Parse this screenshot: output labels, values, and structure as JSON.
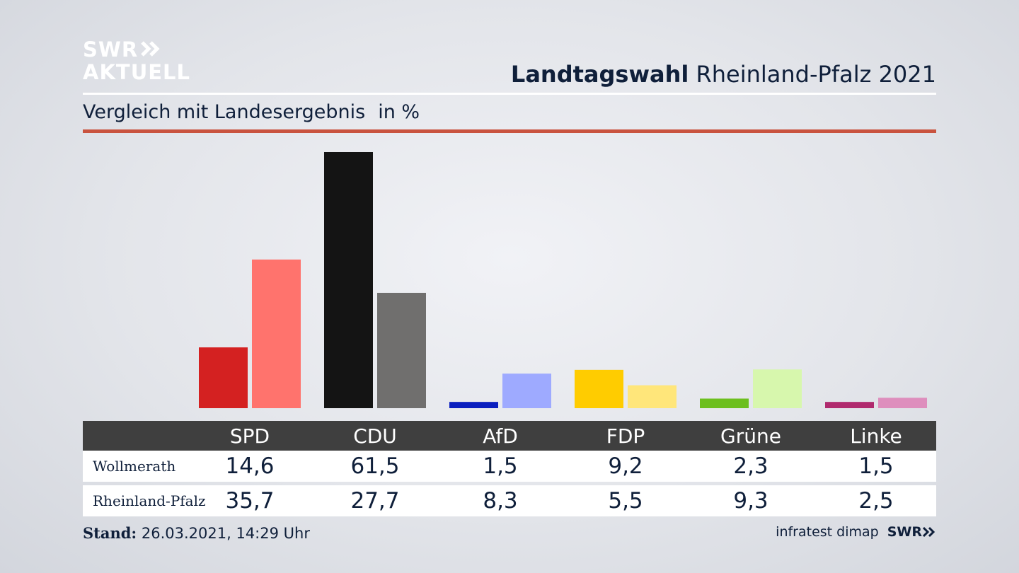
{
  "logo": {
    "line1": "SWR",
    "line2": "AKTUELL"
  },
  "title": {
    "bold": "Landtagswahl",
    "rest": "Rheinland-Pfalz 2021"
  },
  "subtitle": {
    "text": "Vergleich mit Landesergebnis",
    "unit": "in %"
  },
  "colors": {
    "accent_rule": "#c9533f",
    "header_bg": "#3f3f3f"
  },
  "chart_data": {
    "type": "bar",
    "categories": [
      "SPD",
      "CDU",
      "AfD",
      "FDP",
      "Grüne",
      "Linke"
    ],
    "series": [
      {
        "name": "Wollmerath",
        "values": [
          14.6,
          61.5,
          1.5,
          9.2,
          2.3,
          1.5
        ],
        "colors": [
          "#d42121",
          "#141414",
          "#0a1fbf",
          "#ffcc00",
          "#6cbf1e",
          "#b02a6e"
        ]
      },
      {
        "name": "Rheinland-Pfalz",
        "values": [
          35.7,
          27.7,
          8.3,
          5.5,
          9.3,
          2.5
        ],
        "colors": [
          "#ff736d",
          "#706f6e",
          "#9eaaff",
          "#ffe67a",
          "#d7f7ad",
          "#de8ebd"
        ]
      }
    ],
    "ylim": [
      0,
      61.5
    ]
  },
  "table": {
    "rows": [
      {
        "label": "Wollmerath",
        "values": [
          "14,6",
          "61,5",
          "1,5",
          "9,2",
          "2,3",
          "1,5"
        ]
      },
      {
        "label": "Rheinland-Pfalz",
        "values": [
          "35,7",
          "27,7",
          "8,3",
          "5,5",
          "9,3",
          "2,5"
        ]
      }
    ]
  },
  "footer": {
    "stand_label": "Stand:",
    "stand_value": "26.03.2021, 14:29 Uhr",
    "source": "infratest dimap",
    "brand": "SWR"
  }
}
